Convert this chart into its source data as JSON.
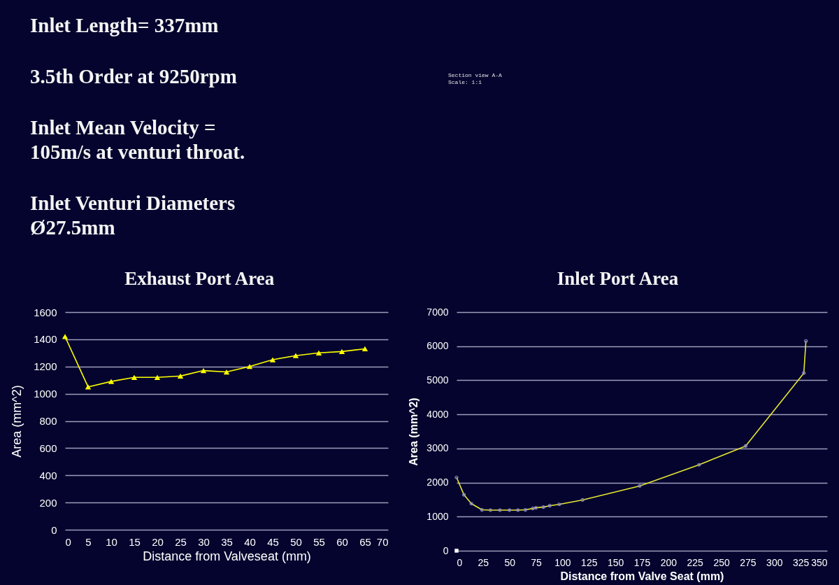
{
  "chart_data": [
    {
      "type": "other",
      "annotations": [
        "Inlet Length= 337mm",
        "3.5th Order at 9250rpm",
        "Inlet Mean Velocity =\n105m/s at venturi throat.",
        "Inlet Venturi Diameters\nØ27.5mm"
      ]
    },
    {
      "type": "other",
      "annotations": [
        "Section view A-A",
        "Scale:  1:1"
      ]
    },
    {
      "type": "line",
      "title": "Exhaust Port Area",
      "xlabel": "Distance from Valveseat (mm)",
      "ylabel": "Area (mm^2)",
      "x": [
        0,
        5,
        10,
        15,
        20,
        25,
        30,
        35,
        40,
        45,
        50,
        55,
        60,
        65
      ],
      "series": [
        {
          "color": "#ffff00",
          "marker": "triangle",
          "values": [
            1420,
            1050,
            1090,
            1120,
            1120,
            1130,
            1170,
            1160,
            1200,
            1250,
            1280,
            1300,
            1310,
            1330
          ]
        }
      ],
      "xlim": [
        0,
        70
      ],
      "xticks": [
        0,
        5,
        10,
        15,
        20,
        25,
        30,
        35,
        40,
        45,
        50,
        55,
        60,
        65,
        70
      ],
      "ylim": [
        0,
        1600
      ],
      "yticks": [
        0,
        200,
        400,
        600,
        800,
        1000,
        1200,
        1400,
        1600
      ],
      "grid": "y"
    },
    {
      "type": "line",
      "title": "Inlet Port Area",
      "xlabel": "Distance from Valve Seat (mm)",
      "ylabel": "Area (mm^2)",
      "series": [
        {
          "type": "line",
          "color": "#e6e632",
          "marker": "circle",
          "x": [
            0,
            7,
            14,
            24,
            32,
            41,
            50,
            58,
            65,
            72,
            75,
            82,
            88,
            97,
            119,
            173,
            229,
            273,
            328,
            330
          ],
          "values": [
            2150,
            1640,
            1380,
            1200,
            1190,
            1190,
            1190,
            1190,
            1200,
            1240,
            1260,
            1280,
            1320,
            1360,
            1490,
            1900,
            2520,
            3070,
            5210,
            6150
          ],
          "colors": [
            "#8a8ad0",
            "#8a8ad0",
            "#8a8ad0",
            "#8a8ad0",
            "#8a8ad0",
            "#8a8ad0",
            "#8a8ad0",
            "#8a8ad0",
            "#8a8ad0",
            "#8a8ad0",
            "#8a8ad0",
            "#8a8ad0",
            "#8a8ad0",
            "#8a8ad0",
            "#8a8ad0",
            "#8a8ad0",
            "#8a8ad0",
            "#8a8ad0",
            "#8a8ad0",
            "#8a8ad0"
          ]
        },
        {
          "type": "scatter",
          "color": "#ffffff",
          "marker": "square",
          "x": [
            0
          ],
          "values": [
            0
          ]
        }
      ],
      "xlim": [
        0,
        350
      ],
      "xticks": [
        0,
        25,
        50,
        75,
        100,
        125,
        150,
        175,
        200,
        225,
        250,
        275,
        300,
        325,
        350
      ],
      "ylim": [
        0,
        7000
      ],
      "yticks": [
        0,
        1000,
        2000,
        3000,
        4000,
        5000,
        6000,
        7000
      ],
      "grid": "y"
    }
  ]
}
